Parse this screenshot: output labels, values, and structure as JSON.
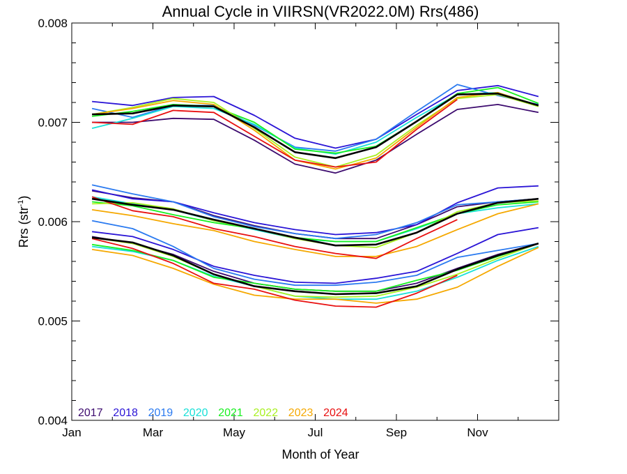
{
  "chart_data": {
    "type": "line",
    "title": "Annual Cycle in VIIRSN(VR2022.0M) Rrs(486)",
    "xlabel": "Month of Year",
    "ylabel_main": "Rrs (str",
    "ylabel_sup": "-1",
    "ylabel_close": ")",
    "xlim": [
      0,
      12
    ],
    "ylim": [
      0.004,
      0.008
    ],
    "x_ticks": [
      {
        "value": 0,
        "label": "Jan"
      },
      {
        "value": 2,
        "label": "Mar"
      },
      {
        "value": 4,
        "label": "May"
      },
      {
        "value": 6,
        "label": "Jul"
      },
      {
        "value": 8,
        "label": "Sep"
      },
      {
        "value": 10,
        "label": "Nov"
      }
    ],
    "y_ticks": [
      {
        "value": 0.004,
        "label": "0.004"
      },
      {
        "value": 0.005,
        "label": "0.005"
      },
      {
        "value": 0.006,
        "label": "0.006"
      },
      {
        "value": 0.007,
        "label": "0.007"
      },
      {
        "value": 0.008,
        "label": "0.008"
      }
    ],
    "grid": false,
    "legend_placement": "bottom-left",
    "x": [
      0.5,
      1.5,
      2.5,
      3.5,
      4.5,
      5.5,
      6.5,
      7.5,
      8.5,
      9.5,
      10.5,
      11.5
    ],
    "groups": [
      {
        "group": "upper",
        "series": [
          {
            "name": "2017",
            "color": "#3c0a6e",
            "values": [
              0.007,
              0.007,
              0.00704,
              0.00703,
              0.00682,
              0.00658,
              0.00649,
              0.00662,
              0.00688,
              0.00713,
              0.00718,
              0.0071
            ]
          },
          {
            "name": "2018",
            "color": "#2a14d6",
            "values": [
              0.00721,
              0.00717,
              0.00725,
              0.00726,
              0.00707,
              0.00684,
              0.00674,
              0.00683,
              0.00708,
              0.00732,
              0.00737,
              0.00726
            ]
          },
          {
            "name": "2019",
            "color": "#2a7af0",
            "values": [
              0.00714,
              0.00705,
              0.00717,
              0.00717,
              0.00697,
              0.00675,
              0.00671,
              0.00683,
              0.00711,
              0.00738,
              0.00727,
              0.00718
            ]
          },
          {
            "name": "2020",
            "color": "#18e0d8",
            "values": [
              0.00694,
              0.00704,
              0.00716,
              0.00714,
              0.00698,
              0.00674,
              0.00668,
              0.0068,
              0.00705,
              0.00728,
              0.0073,
              0.00717
            ]
          },
          {
            "name": "2021",
            "color": "#18f020",
            "values": [
              0.00706,
              0.00711,
              0.00718,
              0.00716,
              0.007,
              0.00673,
              0.00669,
              0.00676,
              0.00701,
              0.00729,
              0.00735,
              0.00719
            ]
          },
          {
            "name": "2022",
            "color": "#a8f020",
            "values": [
              0.00708,
              0.00715,
              0.00724,
              0.0072,
              0.00694,
              0.00665,
              0.00655,
              0.00667,
              0.00697,
              0.00724,
              0.00728,
              0.00716
            ]
          },
          {
            "name": "2023",
            "color": "#f5a800",
            "values": [
              0.00708,
              0.00714,
              0.00722,
              0.00718,
              0.00692,
              0.00662,
              0.00653,
              0.00664,
              0.00695,
              0.00725,
              0.0073,
              0.00717
            ]
          },
          {
            "name": "2024",
            "color": "#e81010",
            "values": [
              0.007,
              0.00698,
              0.00712,
              0.0071,
              0.00686,
              0.00662,
              0.00655,
              0.0066,
              0.00693,
              0.00723,
              null,
              null
            ]
          },
          {
            "name": "",
            "color": "#000000",
            "mean": true,
            "values": [
              0.00708,
              0.00709,
              0.00717,
              0.00716,
              0.00695,
              0.0067,
              0.00664,
              0.00675,
              0.00701,
              0.00728,
              0.00729,
              0.00717
            ]
          }
        ]
      },
      {
        "group": "middle",
        "series": [
          {
            "name": "2017",
            "color": "#3c0a6e",
            "values": [
              0.00631,
              0.00624,
              0.0062,
              0.00606,
              0.00596,
              0.00588,
              0.00583,
              0.00583,
              0.00597,
              0.00615,
              0.0062,
              0.00623
            ]
          },
          {
            "name": "2018",
            "color": "#2a14d6",
            "values": [
              0.00632,
              0.00623,
              0.0062,
              0.00609,
              0.00599,
              0.00592,
              0.00587,
              0.00589,
              0.00597,
              0.00619,
              0.00634,
              0.00636
            ]
          },
          {
            "name": "2019",
            "color": "#2a7af0",
            "values": [
              0.00637,
              0.00628,
              0.0062,
              0.00605,
              0.00595,
              0.00588,
              0.00583,
              0.00587,
              0.00599,
              0.00617,
              0.0062,
              0.00623
            ]
          },
          {
            "name": "2020",
            "color": "#18e0d8",
            "values": [
              0.00625,
              0.00618,
              0.00612,
              0.00601,
              0.00592,
              0.00583,
              0.0058,
              0.0058,
              0.00593,
              0.00608,
              0.00614,
              0.00618
            ]
          },
          {
            "name": "2021",
            "color": "#18f020",
            "values": [
              0.0062,
              0.00616,
              0.00607,
              0.00599,
              0.00593,
              0.00584,
              0.0058,
              0.0058,
              0.00594,
              0.00608,
              0.00617,
              0.0062
            ]
          },
          {
            "name": "2022",
            "color": "#a8f020",
            "values": [
              0.00618,
              0.00619,
              0.00613,
              0.00601,
              0.00593,
              0.00583,
              0.00576,
              0.00574,
              0.00589,
              0.0061,
              0.00619,
              0.00621
            ]
          },
          {
            "name": "2023",
            "color": "#f5a800",
            "values": [
              0.00612,
              0.00606,
              0.00598,
              0.00591,
              0.0058,
              0.00572,
              0.00565,
              0.00565,
              0.00575,
              0.00592,
              0.00608,
              0.00618
            ]
          },
          {
            "name": "2024",
            "color": "#e81010",
            "values": [
              0.00625,
              0.00611,
              0.00605,
              0.00593,
              0.00585,
              0.00575,
              0.00568,
              0.00563,
              0.00583,
              0.00602,
              null,
              null
            ]
          },
          {
            "name": "",
            "color": "#000000",
            "mean": true,
            "values": [
              0.00623,
              0.00617,
              0.00612,
              0.00602,
              0.00593,
              0.00584,
              0.00576,
              0.00577,
              0.00589,
              0.00608,
              0.00619,
              0.00623
            ]
          }
        ]
      },
      {
        "group": "lower",
        "series": [
          {
            "name": "2017",
            "color": "#3c0a6e",
            "values": [
              0.00585,
              0.00578,
              0.00567,
              0.0055,
              0.00538,
              0.00532,
              0.0053,
              0.0053,
              0.00538,
              0.00553,
              0.00567,
              0.00578
            ]
          },
          {
            "name": "2018",
            "color": "#2a14d6",
            "values": [
              0.0059,
              0.00585,
              0.00572,
              0.00555,
              0.00546,
              0.00539,
              0.00538,
              0.00543,
              0.0055,
              0.00568,
              0.00587,
              0.00594
            ]
          },
          {
            "name": "2019",
            "color": "#2a7af0",
            "values": [
              0.00601,
              0.00593,
              0.00575,
              0.00553,
              0.00542,
              0.00536,
              0.00536,
              0.00539,
              0.00546,
              0.00564,
              0.00571,
              0.00578
            ]
          },
          {
            "name": "2020",
            "color": "#18e0d8",
            "values": [
              0.00575,
              0.0057,
              0.00561,
              0.00545,
              0.00535,
              0.00525,
              0.00522,
              0.00522,
              0.0053,
              0.00544,
              0.00561,
              0.00575
            ]
          },
          {
            "name": "2021",
            "color": "#18f020",
            "values": [
              0.00577,
              0.00571,
              0.00561,
              0.00544,
              0.00538,
              0.00532,
              0.0053,
              0.0053,
              0.00541,
              0.00551,
              0.00565,
              0.00578
            ]
          },
          {
            "name": "2022",
            "color": "#a8f020",
            "values": [
              0.00584,
              0.00578,
              0.00565,
              0.00547,
              0.00535,
              0.00525,
              0.00524,
              0.00525,
              0.00534,
              0.00547,
              0.00563,
              0.00578
            ]
          },
          {
            "name": "2023",
            "color": "#f5a800",
            "values": [
              0.00572,
              0.00566,
              0.00553,
              0.00537,
              0.00526,
              0.00522,
              0.00522,
              0.00518,
              0.00522,
              0.00534,
              0.00555,
              0.00574
            ]
          },
          {
            "name": "2024",
            "color": "#e81010",
            "values": [
              0.00583,
              0.00573,
              0.00558,
              0.00538,
              0.00532,
              0.00521,
              0.00515,
              0.00514,
              0.00528,
              0.00546,
              null,
              null
            ]
          },
          {
            "name": "",
            "color": "#000000",
            "mean": true,
            "values": [
              0.00584,
              0.00579,
              0.00566,
              0.00547,
              0.00535,
              0.0053,
              0.00527,
              0.00528,
              0.00535,
              0.00552,
              0.00566,
              0.00578
            ]
          }
        ]
      }
    ],
    "legend": [
      {
        "label": "2017",
        "color": "#3c0a6e"
      },
      {
        "label": "2018",
        "color": "#2a14d6"
      },
      {
        "label": "2019",
        "color": "#2a7af0"
      },
      {
        "label": "2020",
        "color": "#18e0d8"
      },
      {
        "label": "2021",
        "color": "#18f020"
      },
      {
        "label": "2022",
        "color": "#a8f020"
      },
      {
        "label": "2023",
        "color": "#f5a800"
      },
      {
        "label": "2024",
        "color": "#e81010"
      }
    ]
  }
}
